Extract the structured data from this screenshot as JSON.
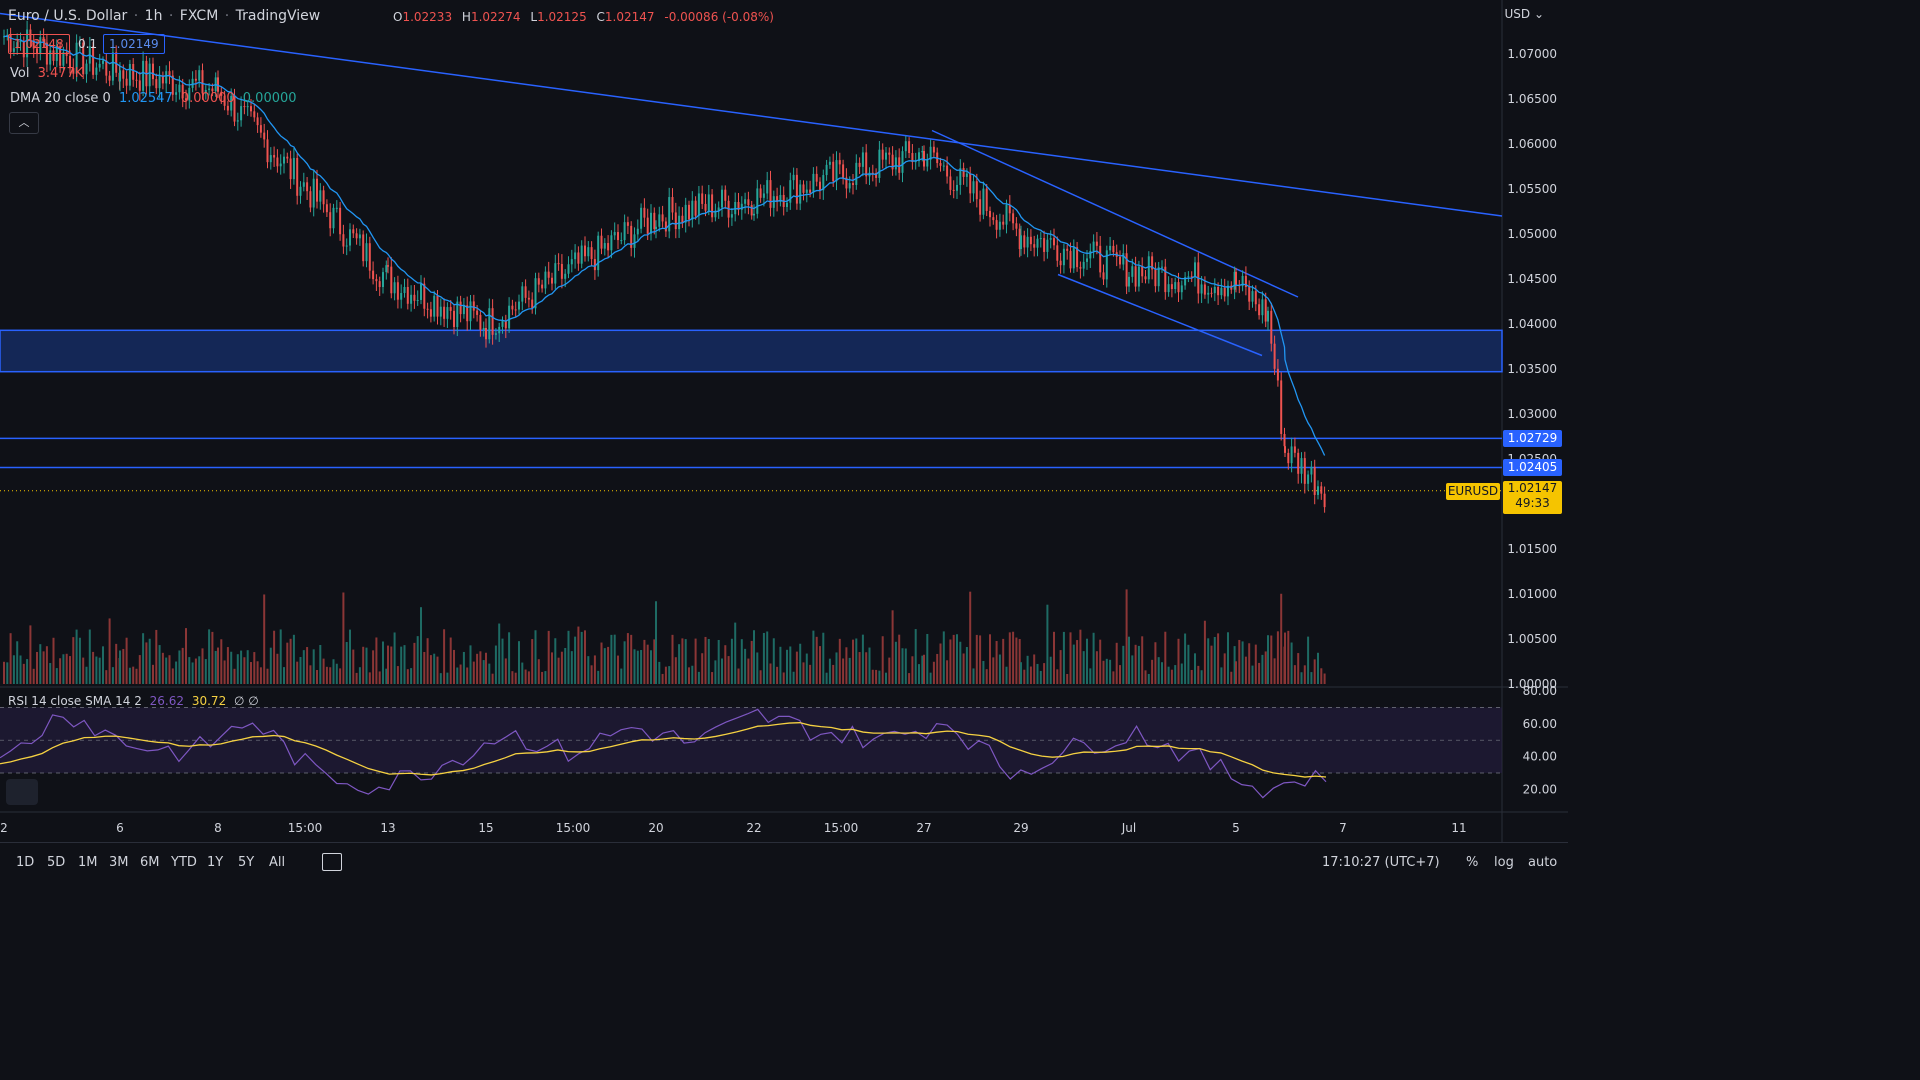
{
  "header": {
    "symbol": "Euro / U.S. Dollar",
    "interval": "1h",
    "exchange": "FXCM",
    "platform": "TradingView",
    "open_label": "O",
    "open": "1.02233",
    "high_label": "H",
    "high": "1.02274",
    "low_label": "L",
    "low": "1.02125",
    "close_label": "C",
    "close": "1.02147",
    "change": "-0.00086 (-0.08%)",
    "bid": "1.02148",
    "spread": "0.1",
    "ask": "1.02149",
    "vol_label": "Vol",
    "vol_value": "3.477K",
    "dma_label": "DMA 20 close 0",
    "dma_v1": "1.02547",
    "dma_v2": "0.00000",
    "dma_v3": "0.00000",
    "collapse_icon": "chevron-up-icon"
  },
  "currency": "USD",
  "price_axis": [
    "1.07000",
    "1.06500",
    "1.06000",
    "1.05500",
    "1.05000",
    "1.04500",
    "1.04000",
    "1.03500",
    "1.03000",
    "1.02500",
    "1.01500",
    "1.01000",
    "1.00500",
    "1.00000"
  ],
  "level_tags": [
    "1.02729",
    "1.02405"
  ],
  "last_price": {
    "symbol": "EURUSD",
    "price": "1.02147",
    "countdown": "49:33"
  },
  "time_axis": [
    "2",
    "6",
    "8",
    "15:00",
    "13",
    "15",
    "15:00",
    "20",
    "22",
    "15:00",
    "27",
    "29",
    "Jul",
    "5",
    "7",
    "11"
  ],
  "rsi": {
    "label": "RSI 14 close SMA 14 2",
    "value": "26.62",
    "sma": "30.72",
    "extra": "∅ ∅",
    "axis": [
      "80.00",
      "60.00",
      "40.00",
      "20.00"
    ]
  },
  "timeframes": [
    "1D",
    "5D",
    "1M",
    "3M",
    "6M",
    "YTD",
    "1Y",
    "5Y",
    "All"
  ],
  "clock": "17:10:27 (UTC+7)",
  "scale_buttons": [
    "%",
    "log",
    "auto"
  ],
  "colors": {
    "up": "#26a69a",
    "down": "#ef5350",
    "line": "#2962ff",
    "dma": "#2196f3",
    "rsi": "#7e57c2",
    "rsi_sma": "#f5d142",
    "zone": "#1a3a8a"
  },
  "chart_data": {
    "type": "line",
    "title": "",
    "ylim": [
      1.0,
      1.07
    ],
    "x": [
      "2",
      "6",
      "8",
      "13",
      "15",
      "20",
      "22",
      "27",
      "29",
      "Jul",
      "5"
    ],
    "series": [
      {
        "values": [
          1.072,
          1.068,
          1.066,
          1.045,
          1.04,
          1.052,
          1.054,
          1.059,
          1.05,
          1.046,
          1.026
        ]
      }
    ],
    "trend_lines": [
      {
        "from_price": 1.0745,
        "to_price": 1.052
      },
      {
        "from_price": 1.0615,
        "to_price": 1.043
      },
      {
        "from_price": 1.0455,
        "to_price": 1.0365
      }
    ],
    "horizontal_levels": [
      1.0393,
      1.0347,
      1.02729,
      1.02405,
      1.02147
    ],
    "rsi_values": [
      35,
      68,
      48,
      42,
      62,
      30,
      22,
      35,
      55,
      42,
      58,
      48,
      65,
      55,
      50,
      62,
      30,
      45,
      55,
      38,
      20,
      30
    ]
  }
}
